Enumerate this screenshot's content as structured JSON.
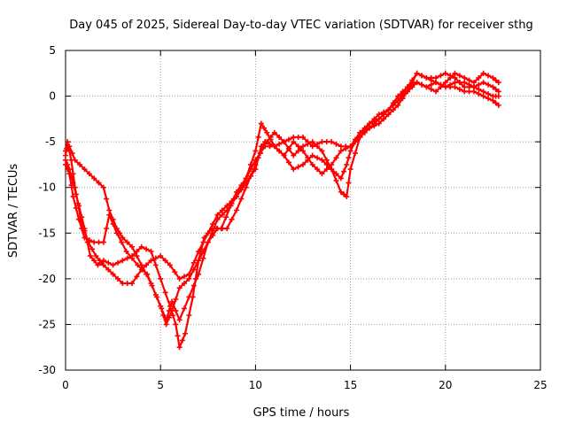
{
  "chart_data": {
    "type": "scatter",
    "title": "Day 045 of 2025, Sidereal Day-to-day VTEC variation (SDTVAR) for receiver sthg",
    "xlabel": "GPS time / hours",
    "ylabel": "SDTVAR / TECUs",
    "xlim": [
      0,
      25
    ],
    "ylim": [
      -30,
      5
    ],
    "xticks": [
      0,
      5,
      10,
      15,
      20,
      25
    ],
    "yticks": [
      -30,
      -25,
      -20,
      -15,
      -10,
      -5,
      0,
      5
    ],
    "grid": true,
    "marker": "plus",
    "color": "#ff0000",
    "series": [
      {
        "name": "trace-1",
        "points": [
          [
            0.0,
            -6.5
          ],
          [
            0.1,
            -5.0
          ],
          [
            0.3,
            -7.0
          ],
          [
            0.5,
            -10.0
          ],
          [
            0.8,
            -13.5
          ],
          [
            1.2,
            -16.0
          ],
          [
            1.6,
            -17.5
          ],
          [
            2.0,
            -18.5
          ],
          [
            2.5,
            -19.5
          ],
          [
            3.0,
            -20.5
          ],
          [
            3.5,
            -20.5
          ],
          [
            4.0,
            -19.0
          ],
          [
            4.5,
            -18.0
          ],
          [
            5.0,
            -17.5
          ],
          [
            5.5,
            -18.5
          ],
          [
            6.0,
            -20.0
          ],
          [
            6.5,
            -19.5
          ],
          [
            7.0,
            -17.0
          ],
          [
            7.5,
            -15.0
          ],
          [
            8.0,
            -13.0
          ],
          [
            8.5,
            -12.0
          ],
          [
            9.0,
            -11.0
          ],
          [
            9.5,
            -9.0
          ],
          [
            10.0,
            -6.0
          ],
          [
            10.3,
            -3.0
          ],
          [
            10.6,
            -4.0
          ],
          [
            11.0,
            -5.5
          ],
          [
            11.5,
            -6.5
          ],
          [
            12.0,
            -5.0
          ],
          [
            12.5,
            -6.0
          ],
          [
            13.0,
            -7.5
          ],
          [
            13.5,
            -8.5
          ],
          [
            14.0,
            -7.5
          ],
          [
            14.5,
            -6.0
          ],
          [
            15.0,
            -5.5
          ],
          [
            15.5,
            -4.0
          ],
          [
            16.0,
            -3.5
          ],
          [
            16.5,
            -3.0
          ],
          [
            17.0,
            -2.0
          ],
          [
            17.5,
            -1.0
          ],
          [
            18.0,
            0.5
          ],
          [
            18.5,
            2.5
          ],
          [
            19.0,
            2.0
          ],
          [
            19.5,
            2.0
          ],
          [
            20.0,
            2.5
          ],
          [
            20.5,
            2.0
          ],
          [
            21.0,
            1.0
          ],
          [
            21.5,
            1.0
          ],
          [
            22.0,
            1.5
          ],
          [
            22.5,
            1.0
          ],
          [
            22.8,
            0.5
          ]
        ]
      },
      {
        "name": "trace-2",
        "points": [
          [
            0.0,
            -7.5
          ],
          [
            0.2,
            -8.5
          ],
          [
            0.4,
            -11.0
          ],
          [
            0.7,
            -13.5
          ],
          [
            1.0,
            -15.5
          ],
          [
            1.5,
            -16.0
          ],
          [
            2.0,
            -16.0
          ],
          [
            2.3,
            -13.0
          ],
          [
            2.7,
            -15.0
          ],
          [
            3.2,
            -17.0
          ],
          [
            3.8,
            -18.5
          ],
          [
            4.3,
            -19.5
          ],
          [
            4.8,
            -22.0
          ],
          [
            5.3,
            -24.5
          ],
          [
            5.6,
            -22.5
          ],
          [
            6.0,
            -24.5
          ],
          [
            6.5,
            -22.0
          ],
          [
            7.0,
            -19.5
          ],
          [
            7.5,
            -16.0
          ],
          [
            8.0,
            -14.5
          ],
          [
            8.5,
            -14.5
          ],
          [
            9.0,
            -12.5
          ],
          [
            9.5,
            -10.0
          ],
          [
            10.0,
            -7.5
          ],
          [
            10.5,
            -5.0
          ],
          [
            11.0,
            -5.5
          ],
          [
            11.5,
            -6.5
          ],
          [
            12.0,
            -8.0
          ],
          [
            12.5,
            -7.5
          ],
          [
            13.0,
            -6.5
          ],
          [
            13.5,
            -7.0
          ],
          [
            14.0,
            -8.0
          ],
          [
            14.5,
            -9.0
          ],
          [
            14.8,
            -7.5
          ],
          [
            15.0,
            -6.0
          ],
          [
            15.5,
            -4.0
          ],
          [
            16.0,
            -3.0
          ],
          [
            16.5,
            -2.5
          ],
          [
            17.0,
            -1.5
          ],
          [
            17.5,
            -0.5
          ],
          [
            18.0,
            1.0
          ],
          [
            18.5,
            2.5
          ],
          [
            19.0,
            2.0
          ],
          [
            19.5,
            1.5
          ],
          [
            20.0,
            1.0
          ],
          [
            20.5,
            1.0
          ],
          [
            21.0,
            0.5
          ],
          [
            21.5,
            0.5
          ],
          [
            22.0,
            0.0
          ],
          [
            22.5,
            -0.5
          ],
          [
            22.8,
            -1.0
          ]
        ]
      },
      {
        "name": "trace-3",
        "points": [
          [
            0.0,
            -7.0
          ],
          [
            0.2,
            -8.0
          ],
          [
            0.4,
            -9.5
          ],
          [
            0.7,
            -12.0
          ],
          [
            1.0,
            -14.5
          ],
          [
            1.3,
            -17.5
          ],
          [
            1.7,
            -18.5
          ],
          [
            2.0,
            -18.0
          ],
          [
            2.5,
            -18.5
          ],
          [
            3.0,
            -18.0
          ],
          [
            3.5,
            -17.5
          ],
          [
            4.0,
            -16.5
          ],
          [
            4.5,
            -17.0
          ],
          [
            5.0,
            -20.0
          ],
          [
            5.5,
            -23.0
          ],
          [
            5.8,
            -25.0
          ],
          [
            6.0,
            -27.5
          ],
          [
            6.3,
            -26.0
          ],
          [
            6.7,
            -22.0
          ],
          [
            7.0,
            -18.0
          ],
          [
            7.3,
            -15.5
          ],
          [
            7.7,
            -14.5
          ],
          [
            8.2,
            -14.5
          ],
          [
            8.7,
            -12.0
          ],
          [
            9.0,
            -10.5
          ],
          [
            9.5,
            -9.0
          ],
          [
            10.0,
            -7.0
          ],
          [
            10.5,
            -5.5
          ],
          [
            11.0,
            -5.5
          ],
          [
            11.5,
            -5.0
          ],
          [
            12.0,
            -6.5
          ],
          [
            12.5,
            -5.5
          ],
          [
            13.0,
            -5.0
          ],
          [
            13.5,
            -6.0
          ],
          [
            14.0,
            -8.0
          ],
          [
            14.5,
            -10.5
          ],
          [
            14.8,
            -11.0
          ],
          [
            15.0,
            -8.0
          ],
          [
            15.5,
            -4.5
          ],
          [
            16.0,
            -3.5
          ],
          [
            16.5,
            -2.5
          ],
          [
            17.0,
            -1.5
          ],
          [
            17.5,
            -0.5
          ],
          [
            18.0,
            0.5
          ],
          [
            18.5,
            1.5
          ],
          [
            19.0,
            1.0
          ],
          [
            19.5,
            1.5
          ],
          [
            20.0,
            1.0
          ],
          [
            20.5,
            1.5
          ],
          [
            21.0,
            1.5
          ],
          [
            21.5,
            1.0
          ],
          [
            22.0,
            0.5
          ],
          [
            22.5,
            0.0
          ],
          [
            22.8,
            0.0
          ]
        ]
      },
      {
        "name": "trace-4",
        "points": [
          [
            0.0,
            -6.0
          ],
          [
            0.2,
            -5.5
          ],
          [
            0.5,
            -7.0
          ],
          [
            1.0,
            -8.0
          ],
          [
            1.5,
            -9.0
          ],
          [
            2.0,
            -10.0
          ],
          [
            2.3,
            -12.5
          ],
          [
            2.7,
            -14.5
          ],
          [
            3.0,
            -15.5
          ],
          [
            3.5,
            -16.5
          ],
          [
            4.0,
            -18.5
          ],
          [
            4.5,
            -20.5
          ],
          [
            5.0,
            -23.0
          ],
          [
            5.3,
            -25.0
          ],
          [
            5.6,
            -23.5
          ],
          [
            6.0,
            -21.0
          ],
          [
            6.5,
            -20.0
          ],
          [
            7.0,
            -18.0
          ],
          [
            7.5,
            -16.0
          ],
          [
            8.0,
            -13.5
          ],
          [
            8.5,
            -12.5
          ],
          [
            9.0,
            -11.0
          ],
          [
            9.5,
            -9.5
          ],
          [
            10.0,
            -8.0
          ],
          [
            10.3,
            -5.5
          ],
          [
            10.6,
            -5.0
          ],
          [
            11.0,
            -4.0
          ],
          [
            11.5,
            -5.0
          ],
          [
            12.0,
            -4.5
          ],
          [
            12.5,
            -4.5
          ],
          [
            13.0,
            -5.5
          ],
          [
            13.5,
            -5.0
          ],
          [
            14.0,
            -5.0
          ],
          [
            14.5,
            -5.5
          ],
          [
            15.0,
            -5.5
          ],
          [
            15.5,
            -4.5
          ],
          [
            16.0,
            -3.0
          ],
          [
            16.5,
            -2.0
          ],
          [
            17.0,
            -1.5
          ],
          [
            17.5,
            0.0
          ],
          [
            18.0,
            1.0
          ],
          [
            18.5,
            1.5
          ],
          [
            19.0,
            1.0
          ],
          [
            19.5,
            0.5
          ],
          [
            20.0,
            1.5
          ],
          [
            20.5,
            2.5
          ],
          [
            21.0,
            2.0
          ],
          [
            21.5,
            1.5
          ],
          [
            22.0,
            2.5
          ],
          [
            22.5,
            2.0
          ],
          [
            22.8,
            1.5
          ]
        ]
      }
    ]
  }
}
